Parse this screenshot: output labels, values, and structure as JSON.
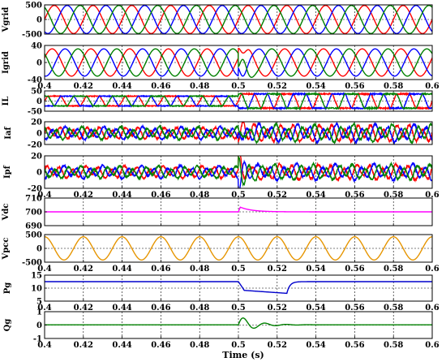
{
  "figure": {
    "xlabel": "Time (s)",
    "x_tick_labels": [
      "0.4",
      "0.42",
      "0.44",
      "0.46",
      "0.48",
      "0.5",
      "0.52",
      "0.54",
      "0.56",
      "0.58",
      "0.6"
    ],
    "background": "#ffffff"
  },
  "chart_data": [
    {
      "type": "line",
      "ylabel": "Vgrid",
      "xlim": [
        0.4,
        0.6
      ],
      "ylim": [
        -500,
        500
      ],
      "yticks": [
        -500,
        0,
        500
      ],
      "grid": true,
      "show_x_tick_labels": false,
      "series": [
        {
          "color": "#ff0000",
          "waveform": "sine",
          "amplitude": 480,
          "frequency_hz": 50,
          "phase_deg": 0,
          "event_time": 0.5
        },
        {
          "color": "#0000ff",
          "waveform": "sine",
          "amplitude": 480,
          "frequency_hz": 50,
          "phase_deg": -120,
          "event_time": 0.5
        },
        {
          "color": "#008000",
          "waveform": "sine",
          "amplitude": 480,
          "frequency_hz": 50,
          "phase_deg": 120,
          "event_time": 0.5
        }
      ]
    },
    {
      "type": "line",
      "ylabel": "Igrid",
      "xlim": [
        0.4,
        0.6
      ],
      "ylim": [
        -40,
        40
      ],
      "yticks": [
        -40,
        0,
        40
      ],
      "grid": true,
      "show_x_tick_labels": true,
      "series": [
        {
          "color": "#ff0000",
          "waveform": "sine",
          "amplitude": 32,
          "frequency_hz": 50,
          "phase_deg": 20,
          "event_time": 0.5,
          "transient": 22
        },
        {
          "color": "#0000ff",
          "waveform": "sine",
          "amplitude": 32,
          "frequency_hz": 50,
          "phase_deg": -100,
          "event_time": 0.5,
          "transient": 18
        },
        {
          "color": "#008000",
          "waveform": "sine",
          "amplitude": 32,
          "frequency_hz": 50,
          "phase_deg": 140,
          "event_time": 0.5,
          "transient": -30
        }
      ]
    },
    {
      "type": "line",
      "ylabel": "IL",
      "xlim": [
        0.4,
        0.6
      ],
      "ylim": [
        -50,
        50
      ],
      "yticks": [
        -50,
        0,
        50
      ],
      "grid": true,
      "show_x_tick_labels": false,
      "series": [
        {
          "color": "#ff0000",
          "waveform": "load_current",
          "amplitude_before": 24,
          "amplitude_after": 35,
          "frequency_hz": 50,
          "phase_deg": 0,
          "event_time": 0.5
        },
        {
          "color": "#0000ff",
          "waveform": "load_current",
          "amplitude_before": 24,
          "amplitude_after": 35,
          "frequency_hz": 50,
          "phase_deg": -120,
          "event_time": 0.5
        },
        {
          "color": "#008000",
          "waveform": "load_current",
          "amplitude_before": 24,
          "amplitude_after": 35,
          "frequency_hz": 50,
          "phase_deg": 120,
          "event_time": 0.5
        }
      ]
    },
    {
      "type": "line",
      "ylabel": "Iaf",
      "xlim": [
        0.4,
        0.6
      ],
      "ylim": [
        -20,
        20
      ],
      "yticks": [
        -20,
        0,
        20
      ],
      "grid": true,
      "show_x_tick_labels": false,
      "series": [
        {
          "color": "#ff0000",
          "waveform": "filter_current",
          "amplitude_before": 10,
          "amplitude_after": 14,
          "frequency_hz": 50,
          "phase_deg": 0,
          "event_time": 0.5,
          "transient": -18
        },
        {
          "color": "#0000ff",
          "waveform": "filter_current",
          "amplitude_before": 10,
          "amplitude_after": 14,
          "frequency_hz": 50,
          "phase_deg": -120,
          "event_time": 0.5,
          "transient": 16
        },
        {
          "color": "#008000",
          "waveform": "filter_current",
          "amplitude_before": 10,
          "amplitude_after": 14,
          "frequency_hz": 50,
          "phase_deg": 120,
          "event_time": 0.5,
          "transient": -8
        }
      ]
    },
    {
      "type": "line",
      "ylabel": "Ipf",
      "xlim": [
        0.4,
        0.6
      ],
      "ylim": [
        -20,
        20
      ],
      "yticks": [
        -20,
        0,
        20
      ],
      "grid": true,
      "show_x_tick_labels": true,
      "series": [
        {
          "color": "#ff0000",
          "waveform": "filter_current",
          "amplitude_before": 7,
          "amplitude_after": 9,
          "frequency_hz": 50,
          "phase_deg": 30,
          "event_time": 0.5,
          "transient": 19
        },
        {
          "color": "#0000ff",
          "waveform": "filter_current",
          "amplitude_before": 7,
          "amplitude_after": 9,
          "frequency_hz": 50,
          "phase_deg": -90,
          "event_time": 0.5,
          "transient": -15
        },
        {
          "color": "#008000",
          "waveform": "filter_current",
          "amplitude_before": 7,
          "amplitude_after": 9,
          "frequency_hz": 50,
          "phase_deg": 150,
          "event_time": 0.5,
          "transient": 17
        }
      ]
    },
    {
      "type": "line",
      "ylabel": "Vdc",
      "xlim": [
        0.4,
        0.6
      ],
      "ylim": [
        690,
        710
      ],
      "yticks": [
        690,
        700,
        710
      ],
      "grid": true,
      "show_x_tick_labels": false,
      "series": [
        {
          "color": "#ff00ff",
          "waveform": "step_decay",
          "base": 700,
          "peak": 704,
          "event_time": 0.5,
          "decay": 0.006
        }
      ]
    },
    {
      "type": "line",
      "ylabel": "Vpcc",
      "xlim": [
        0.4,
        0.6
      ],
      "ylim": [
        -500,
        500
      ],
      "yticks": [
        -500,
        0,
        500
      ],
      "grid": true,
      "show_x_tick_labels": true,
      "series": [
        {
          "color": "#e69500",
          "waveform": "sine",
          "amplitude": 420,
          "frequency_hz": 50,
          "phase_deg": 90,
          "event_time": 0.5
        }
      ]
    },
    {
      "type": "line",
      "ylabel": "Pg",
      "xlim": [
        0.4,
        0.6
      ],
      "ylim": [
        5,
        15
      ],
      "yticks": [
        5,
        10,
        15
      ],
      "grid": true,
      "show_x_tick_labels": true,
      "series": [
        {
          "color": "#0000cc",
          "waveform": "sag",
          "base": 12.5,
          "dip1": 3.2,
          "dip2": 4.5,
          "event_time": 0.5,
          "recover_time": 0.525
        }
      ]
    },
    {
      "type": "line",
      "ylabel": "Qg",
      "xlim": [
        0.4,
        0.6
      ],
      "ylim": [
        -1,
        1
      ],
      "yticks": [
        -1,
        0,
        1
      ],
      "grid": true,
      "show_x_tick_labels": true,
      "series": [
        {
          "color": "#008000",
          "waveform": "oscillation",
          "base": 0.02,
          "amp": 0.7,
          "event_time": 0.5,
          "decay": 0.008,
          "freq_hz": 90
        }
      ]
    }
  ]
}
